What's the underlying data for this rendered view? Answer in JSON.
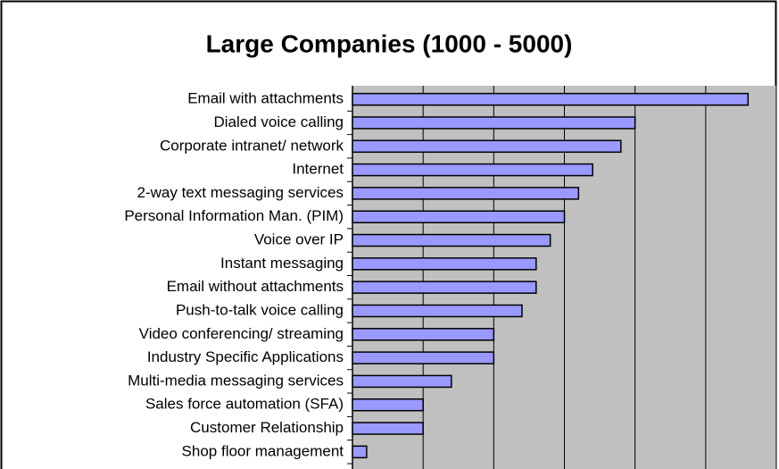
{
  "chart_data": {
    "type": "barh",
    "title": "Large Companies (1000 - 5000)",
    "categories": [
      "Email with attachments",
      "Dialed voice calling",
      "Corporate intranet/ network",
      "Internet",
      "2-way text messaging services",
      "Personal Information Man. (PIM)",
      "Voice over IP",
      "Instant messaging",
      "Email without attachments",
      "Push-to-talk voice calling",
      "Video conferencing/ streaming",
      "Industry Specific Applications",
      "Multi-media messaging services",
      "Sales force automation (SFA)",
      "Customer Relationship",
      "Shop floor management"
    ],
    "values": [
      56,
      40,
      38,
      34,
      32,
      30,
      28,
      26,
      26,
      24,
      20,
      20,
      14,
      10,
      10,
      2
    ],
    "color": "#9999ff",
    "xlim": [
      0,
      60
    ],
    "xticks": [
      0,
      10,
      20,
      30,
      40,
      50,
      60
    ],
    "grid": true
  }
}
